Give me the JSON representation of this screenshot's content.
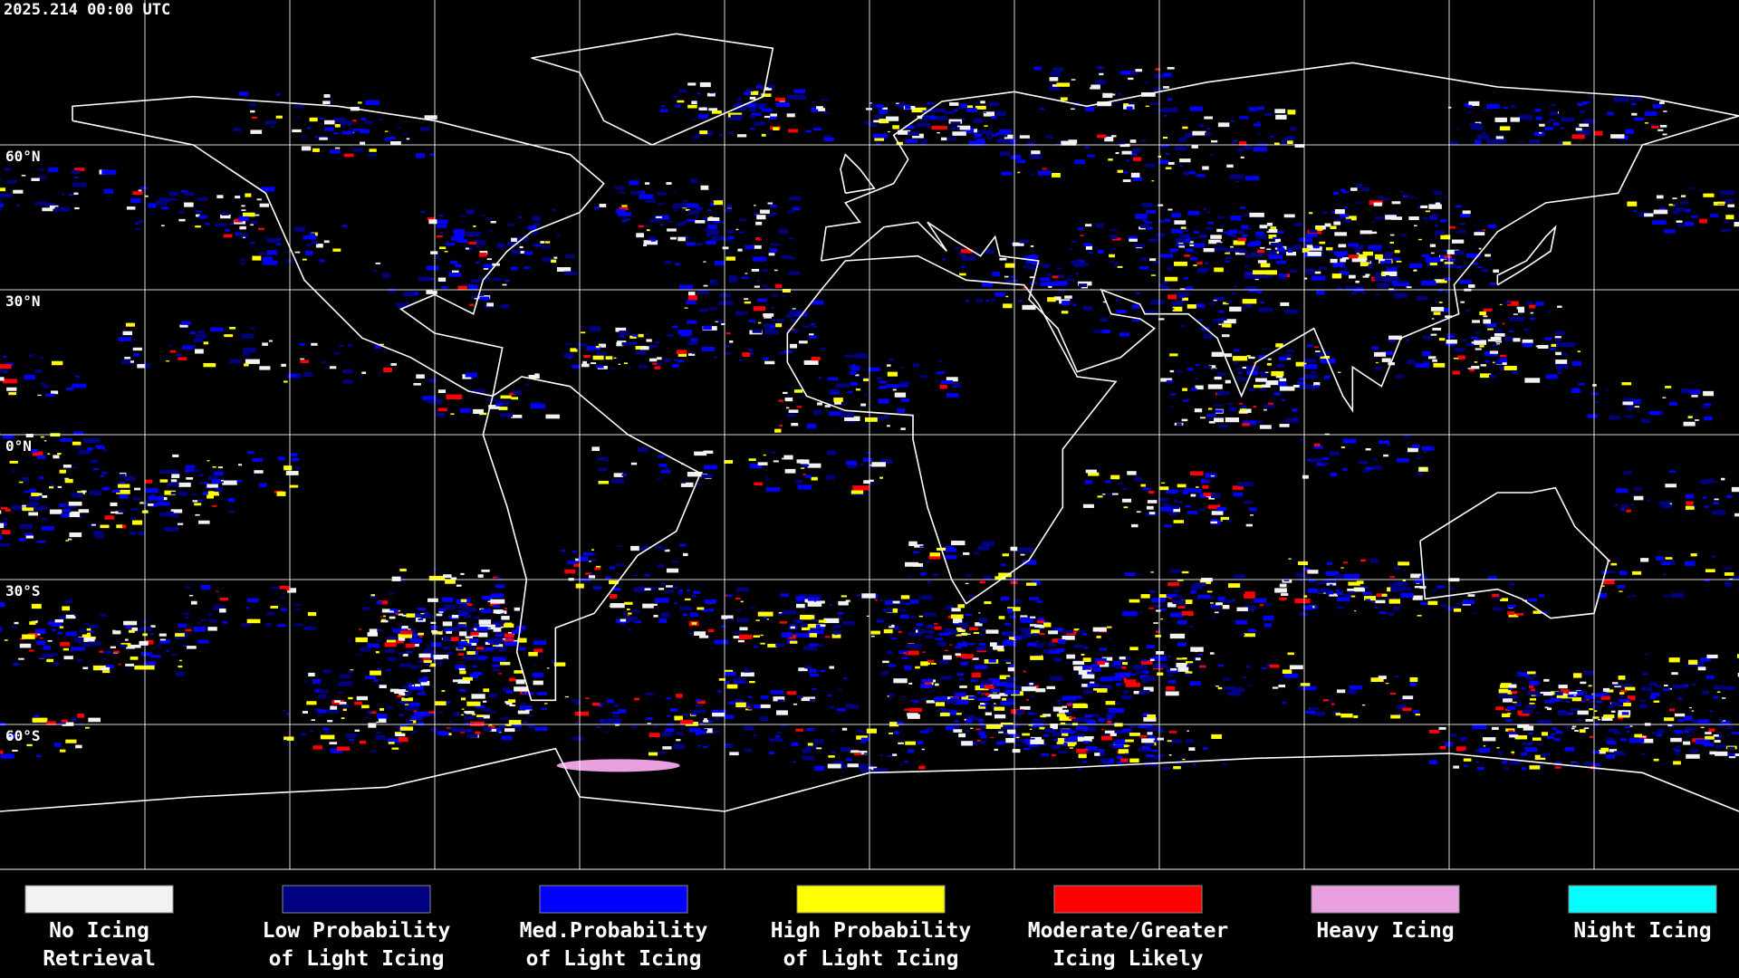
{
  "header": {
    "timestamp": "2025.214 00:00 UTC"
  },
  "grid": {
    "lat_labels": [
      "60°N",
      "30°N",
      "0°N",
      "30°S",
      "60°S"
    ]
  },
  "legend": {
    "items": [
      {
        "lines": [
          "No Icing",
          "Retrieval"
        ],
        "color": "#f2f2f2"
      },
      {
        "lines": [
          "Low Probability",
          "of Light Icing"
        ],
        "color": "#000080"
      },
      {
        "lines": [
          "Med.Probability",
          "of Light Icing"
        ],
        "color": "#0000ff"
      },
      {
        "lines": [
          "High Probability",
          "of Light Icing"
        ],
        "color": "#ffff00"
      },
      {
        "lines": [
          "Moderate/Greater",
          "Icing Likely"
        ],
        "color": "#ff0000"
      },
      {
        "lines": [
          "Heavy Icing"
        ],
        "color": "#e8a0e0"
      },
      {
        "lines": [
          "Night Icing"
        ],
        "color": "#00ffff"
      }
    ]
  }
}
